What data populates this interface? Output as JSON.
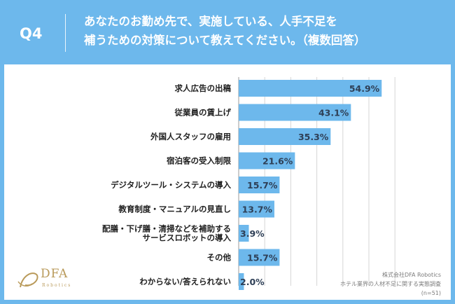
{
  "header": {
    "q_label": "Q4",
    "question_line1": "あなたのお勤め先で、実施している、人手不足を",
    "question_line2": "補うための対策について教えてください。（複数回答）"
  },
  "logo": {
    "name": "DFA",
    "sub": "Robotics"
  },
  "source": {
    "line1": "株式会社DFA Robotics",
    "line2": "ホテル業界の人材不足に関する実態調査",
    "line3": "(n=51)"
  },
  "colors": {
    "background": "#6db8ec",
    "bar": "#6db8ec",
    "value_text": "#2e3f56",
    "logo": "#b99a5a"
  },
  "chart_data": {
    "type": "bar",
    "orientation": "horizontal",
    "categories": [
      "求人広告の出稿",
      "従業員の賃上げ",
      "外国人スタッフの雇用",
      "宿泊客の受入制限",
      "デジタルツール・システムの導入",
      "教育制度・マニュアルの見直し",
      "配膳・下げ膳・清掃などを補助する\nサービスロボットの導入",
      "その他",
      "わからない/答えられない"
    ],
    "values": [
      54.9,
      43.1,
      35.3,
      21.6,
      15.7,
      13.7,
      3.9,
      15.7,
      2.0
    ],
    "value_labels": [
      "54.9%",
      "43.1%",
      "35.3%",
      "21.6%",
      "15.7%",
      "13.7%",
      "3.9%",
      "15.7%",
      "2.0%"
    ],
    "xlim": [
      0,
      60
    ],
    "grid": true
  }
}
